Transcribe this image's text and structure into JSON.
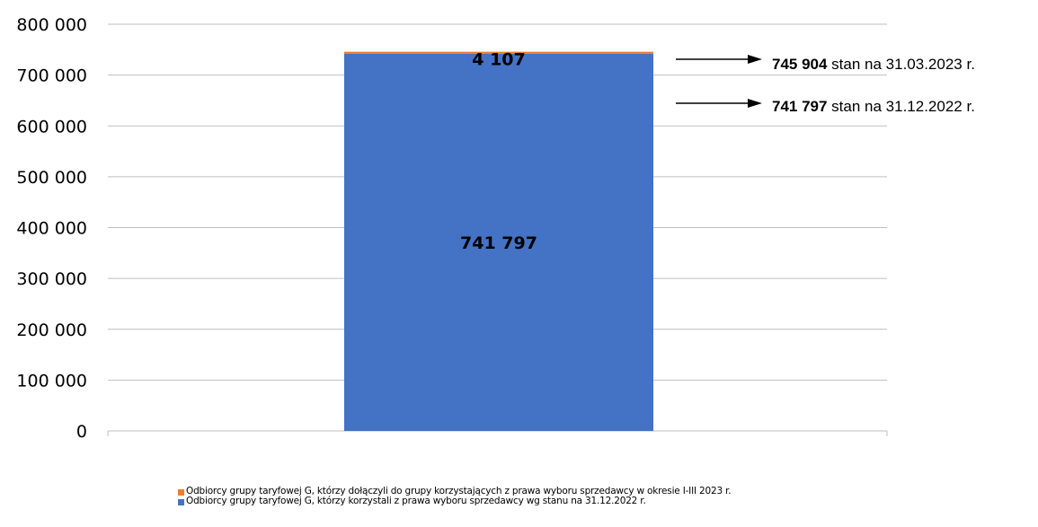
{
  "chart_data": {
    "type": "bar",
    "stacked": true,
    "categories": [
      ""
    ],
    "series": [
      {
        "name": "Odbiorcy grupy taryfowej G, którzy korzystali z prawa wyboru sprzedawcy wg stanu na 31.12.2022 r.",
        "values": [
          741797
        ],
        "label": "741 797",
        "color": "#4472C4"
      },
      {
        "name": "Odbiorcy grupy taryfowej G, którzy dołączyli do grupy korzystających z prawa wyboru sprzedawcy w okresie I-III 2023 r.",
        "values": [
          4107
        ],
        "label": "4 107",
        "color": "#ED7D31"
      }
    ],
    "ylim": [
      0,
      800000
    ],
    "yticks": [
      0,
      100000,
      200000,
      300000,
      400000,
      500000,
      600000,
      700000,
      800000
    ],
    "ytick_labels": [
      "0",
      "100 000",
      "200 000",
      "300 000",
      "400 000",
      "500 000",
      "600 000",
      "700 000",
      "800 000"
    ],
    "grid": true,
    "legend_position": "bottom",
    "annotations": [
      {
        "value_text": "745 904",
        "text": " stan na 31.03.2023 r.",
        "value": 745904
      },
      {
        "value_text": "741 797",
        "text": " stan na 31.12.2022 r.",
        "value": 741797
      }
    ]
  },
  "legend": {
    "entries": [
      {
        "text": "Odbiorcy grupy taryfowej G, którzy dołączyli do grupy korzystających z prawa wyboru sprzedawcy w okresie I-III 2023 r.",
        "color": "#ED7D31"
      },
      {
        "text": "Odbiorcy grupy taryfowej G, którzy korzystali z prawa wyboru sprzedawcy wg stanu na 31.12.2022 r.",
        "color": "#4472C4"
      }
    ]
  }
}
